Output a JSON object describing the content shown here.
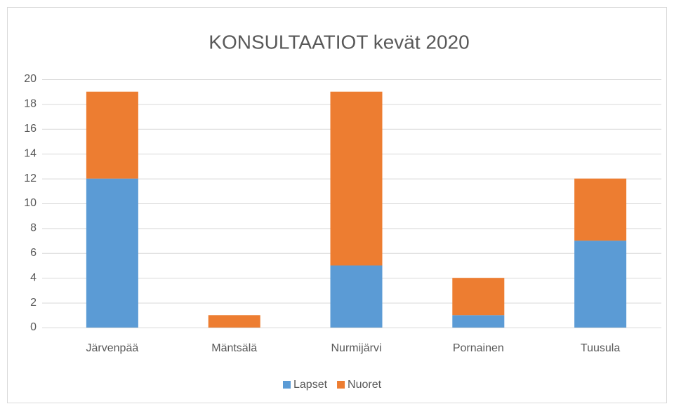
{
  "chart_data": {
    "type": "stacked_bar",
    "title": "KONSULTAATIOT kevät 2020",
    "categories": [
      "Järvenpää",
      "Mäntsälä",
      "Nurmijärvi",
      "Pornainen",
      "Tuusula"
    ],
    "series": [
      {
        "name": "Lapset",
        "color": "#5b9bd5",
        "values": [
          12,
          0,
          5,
          1,
          7
        ]
      },
      {
        "name": "Nuoret",
        "color": "#ed7d31",
        "values": [
          7,
          1,
          14,
          3,
          5
        ]
      }
    ],
    "ylim": [
      0,
      20
    ],
    "yticks": [
      0,
      2,
      4,
      6,
      8,
      10,
      12,
      14,
      16,
      18,
      20
    ],
    "grid": true,
    "legend": "bottom"
  }
}
